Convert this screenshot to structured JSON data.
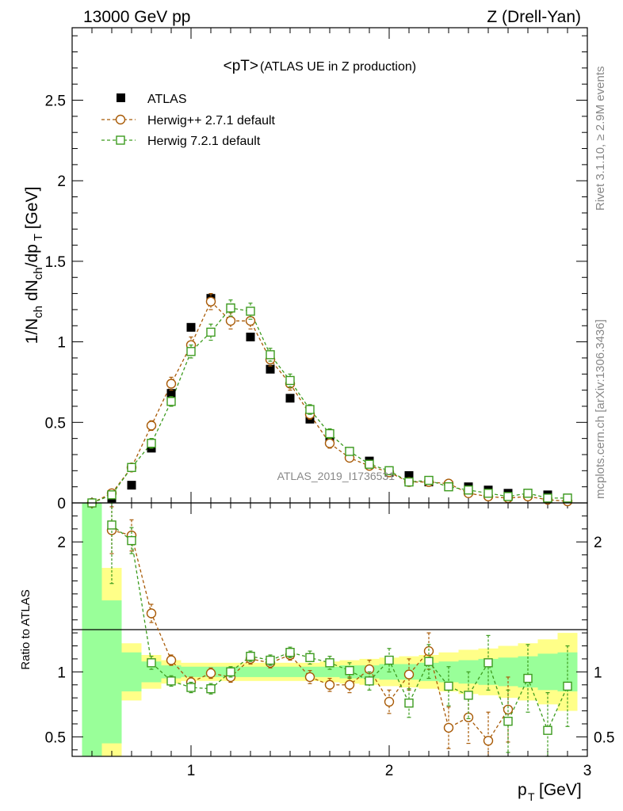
{
  "header": {
    "left": "13000 GeV pp",
    "right": "Z (Drell-Yan)"
  },
  "side": {
    "rivet": "Rivet 3.1.10, ≥ 2.9M events",
    "mcplots": "mcplots.cern.ch [arXiv:1306.3436]"
  },
  "chart_data": {
    "type": "scatter",
    "title": "<pT>",
    "title_suffix": "(ATLAS UE in Z production)",
    "analysis_label": "ATLAS_2019_I1736531",
    "xlabel_main": "p",
    "xlabel_sub": "T",
    "xlabel_unit": "[GeV]",
    "ylabel": "1/N_ch dN_ch/dp_T [GeV]",
    "ratio_ylabel": "Ratio to ATLAS",
    "xlim": [
      0.4,
      3.0
    ],
    "ylim": [
      0,
      2.95
    ],
    "ratio_ylim": [
      0.35,
      2.3
    ],
    "x_ticks": [
      1,
      2,
      3
    ],
    "y_ticks": [
      0,
      0.5,
      1,
      1.5,
      2,
      2.5
    ],
    "y_tick_labels": [
      "0",
      "0.5",
      "1",
      "1.5",
      "2",
      "2.5"
    ],
    "ratio_ticks": [
      0.5,
      1,
      2
    ],
    "ratio_tick_labels": [
      "0.5",
      "1",
      "2"
    ],
    "x_tick_labels": [
      "1",
      "2",
      "3"
    ],
    "legend": [
      {
        "name": "ATLAS",
        "color": "#000000",
        "marker": "filled-square"
      },
      {
        "name": "Herwig++ 2.7.1 default",
        "color": "#a85a06",
        "marker": "open-circle"
      },
      {
        "name": "Herwig 7.2.1 default",
        "color": "#3c9b1e",
        "marker": "open-square"
      }
    ],
    "x": [
      0.5,
      0.6,
      0.7,
      0.8,
      0.9,
      1.0,
      1.1,
      1.2,
      1.3,
      1.4,
      1.5,
      1.6,
      1.7,
      1.8,
      1.9,
      2.0,
      2.1,
      2.2,
      2.3,
      2.4,
      2.5,
      2.6,
      2.7,
      2.8,
      2.9
    ],
    "series": [
      {
        "name": "ATLAS",
        "values": [
          0.0,
          0.03,
          0.11,
          0.34,
          0.68,
          1.09,
          1.27,
          1.21,
          1.03,
          0.83,
          0.65,
          0.52,
          0.4,
          0.32,
          0.26,
          0.19,
          0.17,
          0.13,
          0.11,
          0.1,
          0.08,
          0.06,
          0.06,
          0.05,
          0.03
        ]
      },
      {
        "name": "Herwig++ 2.7.1 default",
        "values": [
          0.0,
          0.06,
          0.22,
          0.48,
          0.74,
          0.98,
          1.25,
          1.13,
          1.13,
          0.89,
          0.74,
          0.55,
          0.37,
          0.28,
          0.23,
          0.19,
          0.13,
          0.13,
          0.12,
          0.06,
          0.04,
          0.03,
          0.04,
          0.02,
          0.01
        ],
        "errors": [
          0.02,
          0.02,
          0.02,
          0.03,
          0.04,
          0.05,
          0.05,
          0.05,
          0.05,
          0.04,
          0.04,
          0.03,
          0.03,
          0.02,
          0.02,
          0.02,
          0.02,
          0.02,
          0.02,
          0.01,
          0.01,
          0.01,
          0.01,
          0.01,
          0.01
        ],
        "ratio": [
          null,
          2.09,
          2.05,
          1.45,
          1.09,
          0.92,
          0.99,
          0.96,
          1.1,
          1.07,
          1.13,
          0.96,
          0.9,
          0.9,
          1.02,
          0.77,
          0.98,
          1.16,
          0.57,
          0.65,
          0.47,
          0.71,
          null,
          null,
          null
        ],
        "ratio_errors": [
          null,
          0.18,
          0.12,
          0.07,
          0.04,
          0.04,
          0.04,
          0.04,
          0.04,
          0.04,
          0.04,
          0.05,
          0.05,
          0.06,
          0.07,
          0.09,
          0.12,
          0.14,
          0.16,
          0.2,
          0.22,
          0.25,
          null,
          null,
          null
        ]
      },
      {
        "name": "Herwig 7.2.1 default",
        "values": [
          0.0,
          0.05,
          0.22,
          0.37,
          0.63,
          0.94,
          1.06,
          1.21,
          1.19,
          0.92,
          0.76,
          0.58,
          0.43,
          0.32,
          0.24,
          0.2,
          0.13,
          0.14,
          0.1,
          0.08,
          0.06,
          0.04,
          0.06,
          0.03,
          0.03
        ],
        "errors": [
          0.02,
          0.02,
          0.02,
          0.03,
          0.03,
          0.04,
          0.05,
          0.05,
          0.05,
          0.04,
          0.04,
          0.03,
          0.03,
          0.02,
          0.02,
          0.02,
          0.02,
          0.02,
          0.02,
          0.01,
          0.01,
          0.01,
          0.01,
          0.01,
          0.01
        ],
        "ratio": [
          null,
          2.13,
          2.01,
          1.07,
          0.93,
          0.88,
          0.87,
          1.0,
          1.12,
          1.09,
          1.15,
          1.11,
          1.07,
          1.01,
          0.93,
          1.09,
          0.76,
          1.08,
          0.89,
          0.82,
          1.07,
          0.62,
          0.95,
          0.55,
          0.89
        ],
        "ratio_errors": [
          null,
          0.45,
          0.1,
          0.05,
          0.04,
          0.04,
          0.04,
          0.04,
          0.04,
          0.04,
          0.04,
          0.05,
          0.05,
          0.06,
          0.07,
          0.09,
          0.11,
          0.13,
          0.15,
          0.18,
          0.21,
          0.24,
          0.26,
          0.29,
          0.31
        ]
      }
    ],
    "ratio_band_inner": [
      1.8,
      0.55,
      0.15,
      0.08,
      0.05,
      0.04,
      0.04,
      0.04,
      0.04,
      0.04,
      0.04,
      0.04,
      0.04,
      0.05,
      0.05,
      0.06,
      0.06,
      0.07,
      0.08,
      0.09,
      0.1,
      0.11,
      0.12,
      0.14,
      0.15
    ],
    "ratio_band_outer": [
      2.0,
      0.8,
      0.22,
      0.13,
      0.09,
      0.07,
      0.07,
      0.07,
      0.07,
      0.07,
      0.07,
      0.07,
      0.08,
      0.09,
      0.1,
      0.11,
      0.12,
      0.13,
      0.15,
      0.17,
      0.18,
      0.2,
      0.22,
      0.25,
      0.3
    ]
  },
  "colors": {
    "herwig_pp": "#a85a06",
    "herwig7": "#3c9b1e",
    "band_inner": "#99ff99",
    "band_outer": "#ffff88",
    "watermark": "#888888"
  }
}
